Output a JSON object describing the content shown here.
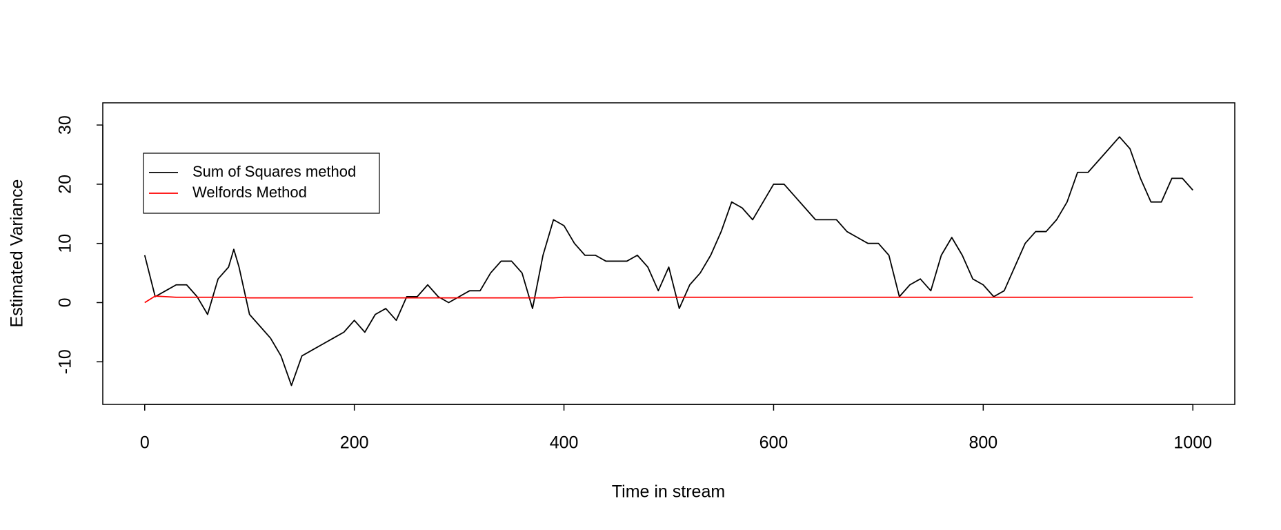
{
  "chart_data": {
    "type": "line",
    "x_label": "Time in stream",
    "y_label": "Estimated Variance",
    "x": [
      0,
      10,
      20,
      30,
      40,
      50,
      60,
      70,
      80,
      85,
      90,
      100,
      110,
      120,
      130,
      140,
      150,
      160,
      170,
      180,
      190,
      200,
      210,
      220,
      230,
      240,
      250,
      260,
      270,
      280,
      290,
      300,
      310,
      320,
      330,
      340,
      350,
      360,
      370,
      380,
      390,
      400,
      410,
      420,
      430,
      440,
      450,
      460,
      470,
      480,
      490,
      500,
      510,
      520,
      530,
      540,
      550,
      560,
      570,
      580,
      590,
      600,
      610,
      620,
      630,
      640,
      650,
      660,
      670,
      680,
      690,
      700,
      710,
      720,
      730,
      740,
      750,
      760,
      770,
      780,
      790,
      800,
      810,
      820,
      830,
      840,
      850,
      860,
      870,
      880,
      890,
      900,
      910,
      920,
      930,
      940,
      950,
      960,
      970,
      980,
      990,
      1000
    ],
    "series": [
      {
        "name": "Sum of Squares method",
        "color": "#000000",
        "values": [
          8,
          1,
          2,
          3,
          3,
          1,
          -2,
          4,
          6,
          9,
          6,
          -2,
          -4,
          -6,
          -9,
          -14,
          -9,
          -8,
          -7,
          -6,
          -5,
          -3,
          -5,
          -2,
          -1,
          -3,
          1,
          1,
          3,
          1,
          0,
          1,
          2,
          2,
          5,
          7,
          7,
          5,
          -1,
          8,
          14,
          13,
          10,
          8,
          8,
          7,
          7,
          7,
          8,
          6,
          2,
          6,
          -1,
          3,
          5,
          8,
          12,
          17,
          16,
          14,
          17,
          20,
          20,
          18,
          16,
          14,
          14,
          14,
          12,
          11,
          10,
          10,
          8,
          1,
          3,
          4,
          2,
          8,
          11,
          8,
          4,
          3,
          1,
          2,
          6,
          10,
          12,
          12,
          14,
          17,
          22,
          22,
          24,
          26,
          28,
          26,
          21,
          17,
          17,
          21,
          21,
          19
        ]
      },
      {
        "name": "Welfords Method",
        "color": "#ff0000",
        "values": [
          0,
          1.1,
          1,
          0.9,
          0.9,
          0.9,
          0.9,
          0.9,
          0.9,
          0.9,
          0.9,
          0.8,
          0.8,
          0.8,
          0.8,
          0.8,
          0.8,
          0.8,
          0.8,
          0.8,
          0.8,
          0.8,
          0.8,
          0.8,
          0.8,
          0.8,
          0.8,
          0.8,
          0.8,
          0.8,
          0.8,
          0.8,
          0.8,
          0.8,
          0.8,
          0.8,
          0.8,
          0.8,
          0.8,
          0.8,
          0.8,
          0.9,
          0.9,
          0.9,
          0.9,
          0.9,
          0.9,
          0.9,
          0.9,
          0.9,
          0.9,
          0.9,
          0.9,
          0.9,
          0.9,
          0.9,
          0.9,
          0.9,
          0.9,
          0.9,
          0.9,
          0.9,
          0.9,
          0.9,
          0.9,
          0.9,
          0.9,
          0.9,
          0.9,
          0.9,
          0.9,
          0.9,
          0.9,
          0.9,
          0.9,
          0.9,
          0.9,
          0.9,
          0.9,
          0.9,
          0.9,
          0.9,
          0.9,
          0.9,
          0.9,
          0.9,
          0.9,
          0.9,
          0.9,
          0.9,
          0.9,
          0.9,
          0.9,
          0.9,
          0.9,
          0.9,
          0.9,
          0.9,
          0.9,
          0.9,
          0.9,
          0.9
        ]
      }
    ],
    "xlim": [
      -40,
      1040
    ],
    "xticks": [
      0,
      200,
      400,
      600,
      800,
      1000
    ],
    "ylim": [
      -17.2,
      33.75
    ],
    "yticks": [
      -10,
      0,
      10,
      20,
      30
    ],
    "legend": "top-left",
    "grid": false
  }
}
